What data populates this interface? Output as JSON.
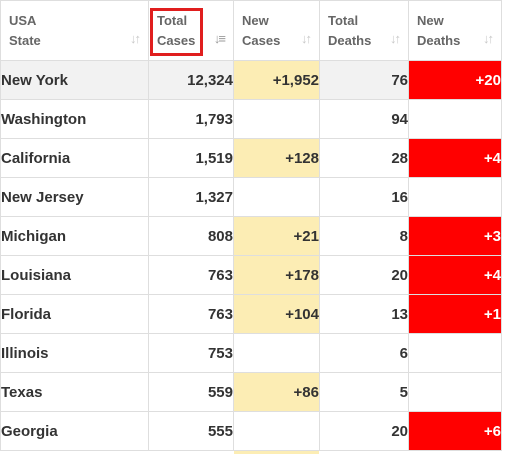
{
  "header": {
    "state": [
      "USA",
      "State"
    ],
    "total_cases": [
      "Total",
      "Cases"
    ],
    "new_cases": [
      "New",
      "Cases"
    ],
    "total_deaths": [
      "Total",
      "Deaths"
    ],
    "new_deaths": [
      "New",
      "Deaths"
    ],
    "sort_icon": "sort-arrows-icon",
    "active_sort_icon": "sort-descending-icon"
  },
  "colors": {
    "new_cases_highlight": "#fcedb4",
    "new_deaths_highlight": "#ff0000",
    "annotation_box": "#e01e1e"
  },
  "rows": [
    {
      "state": "New York",
      "total_cases": "12,324",
      "new_cases": "+1,952",
      "total_deaths": "76",
      "new_deaths": "+20"
    },
    {
      "state": "Washington",
      "total_cases": "1,793",
      "new_cases": "",
      "total_deaths": "94",
      "new_deaths": ""
    },
    {
      "state": "California",
      "total_cases": "1,519",
      "new_cases": "+128",
      "total_deaths": "28",
      "new_deaths": "+4"
    },
    {
      "state": "New Jersey",
      "total_cases": "1,327",
      "new_cases": "",
      "total_deaths": "16",
      "new_deaths": ""
    },
    {
      "state": "Michigan",
      "total_cases": "808",
      "new_cases": "+21",
      "total_deaths": "8",
      "new_deaths": "+3"
    },
    {
      "state": "Louisiana",
      "total_cases": "763",
      "new_cases": "+178",
      "total_deaths": "20",
      "new_deaths": "+4"
    },
    {
      "state": "Florida",
      "total_cases": "763",
      "new_cases": "+104",
      "total_deaths": "13",
      "new_deaths": "+1"
    },
    {
      "state": "Illinois",
      "total_cases": "753",
      "new_cases": "",
      "total_deaths": "6",
      "new_deaths": ""
    },
    {
      "state": "Texas",
      "total_cases": "559",
      "new_cases": "+86",
      "total_deaths": "5",
      "new_deaths": ""
    },
    {
      "state": "Georgia",
      "total_cases": "555",
      "new_cases": "",
      "total_deaths": "20",
      "new_deaths": "+6"
    }
  ]
}
